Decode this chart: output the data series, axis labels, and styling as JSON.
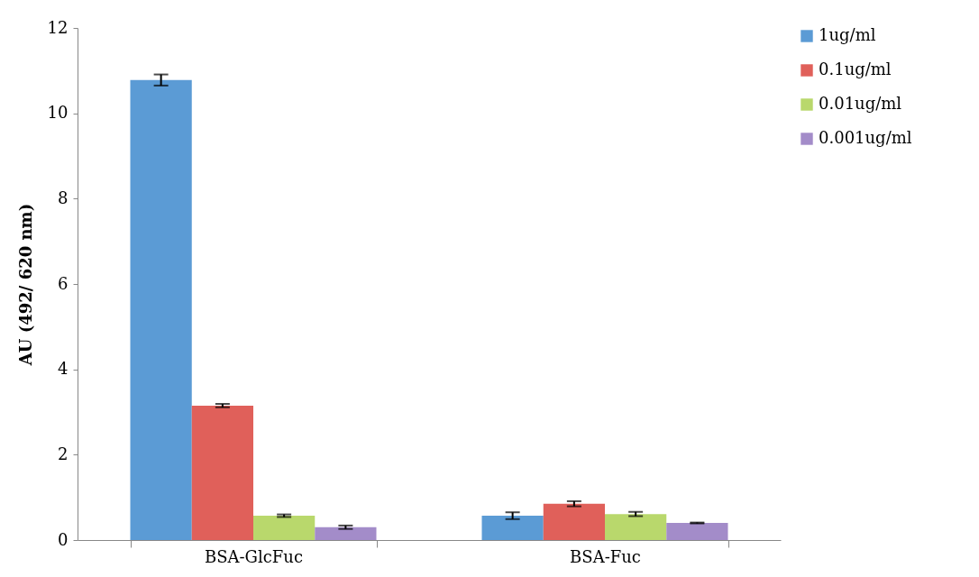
{
  "chart_data": {
    "type": "bar",
    "ylabel": "AU (492/ 620 nm)",
    "categories": [
      "BSA-GlcFuc",
      "BSA-Fuc"
    ],
    "series": [
      {
        "name": "1ug/ml",
        "color": "#5b9bd5",
        "values": [
          10.78,
          0.57
        ],
        "errors": [
          0.13,
          0.08
        ]
      },
      {
        "name": "0.1ug/ml",
        "color": "#e0605a",
        "values": [
          3.15,
          0.85
        ],
        "errors": [
          0.04,
          0.06
        ]
      },
      {
        "name": "0.01ug/ml",
        "color": "#b9d86c",
        "values": [
          0.57,
          0.61
        ],
        "errors": [
          0.03,
          0.05
        ]
      },
      {
        "name": "0.001ug/ml",
        "color": "#a38cc9",
        "values": [
          0.3,
          0.4
        ],
        "errors": [
          0.04,
          0.01
        ]
      }
    ],
    "ylim": [
      0,
      12
    ],
    "yticks": [
      0,
      2,
      4,
      6,
      8,
      10,
      12
    ],
    "grid": false,
    "legend": "right"
  }
}
